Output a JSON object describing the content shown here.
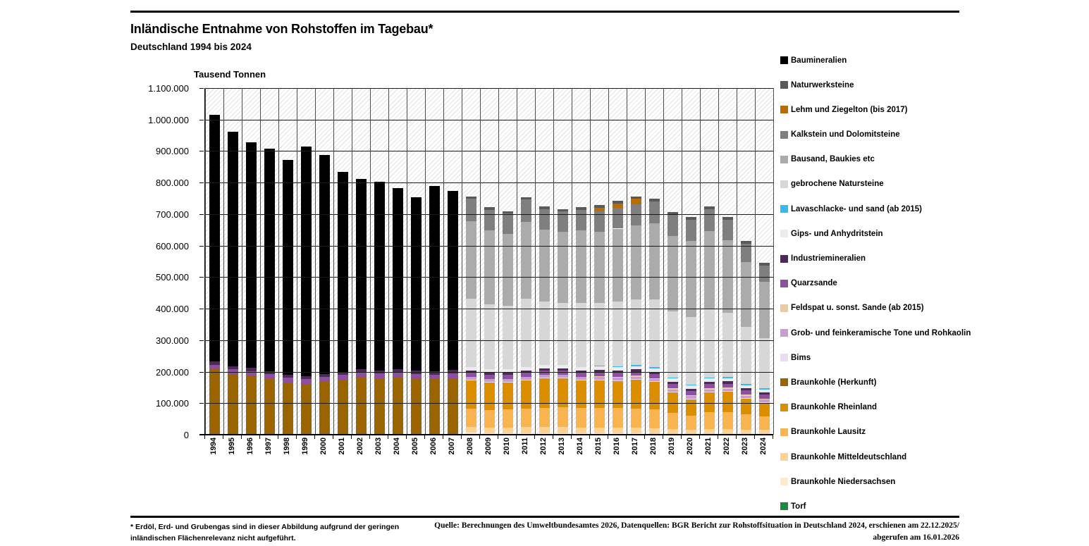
{
  "header": {
    "title": "Inländische Entnahme von Rohstoffen im Tagebau*",
    "subtitle": "Deutschland 1994 bis 2024"
  },
  "axis": {
    "y_title": "Tausend Tonnen"
  },
  "footnotes": {
    "left_line1": "* Erdöl, Erd- und Grubengas sind in dieser Abbildung aufgrund der geringen",
    "left_line2": "inländischen Flächenrelevanz nicht aufgeführt.",
    "source_line1": "Quelle: Berechnungen des Umweltbundesamtes 2026, Datenquellen: BGR Bericht zur Rohstoffsituation in Deutschland 2024, erschienen am 22.12.2025/",
    "source_line2": "abgerufen am 16.01.2026"
  },
  "chart_data": {
    "type": "bar",
    "stacked": true,
    "title": "Inländische Entnahme von Rohstoffen im Tagebau*",
    "subtitle": "Deutschland 1994 bis 2024",
    "ylabel": "Tausend Tonnen",
    "xlabel": "",
    "ylim": [
      0,
      1100000
    ],
    "ytick_step": 100000,
    "grid": true,
    "legend_position": "right",
    "legend_order": "reverse_of_stacking",
    "years": [
      1994,
      1995,
      1996,
      1997,
      1998,
      1999,
      2000,
      2001,
      2002,
      2003,
      2004,
      2005,
      2006,
      2007,
      2008,
      2009,
      2010,
      2011,
      2012,
      2013,
      2014,
      2015,
      2016,
      2017,
      2018,
      2019,
      2020,
      2021,
      2022,
      2023,
      2024
    ],
    "series": [
      {
        "name": "Torf",
        "color": "#188A42",
        "values": [
          0,
          0,
          0,
          0,
          0,
          0,
          0,
          0,
          0,
          0,
          0,
          0,
          0,
          0,
          3000,
          3000,
          3000,
          3000,
          3000,
          3000,
          3000,
          3000,
          3000,
          3000,
          3000,
          3000,
          3000,
          3000,
          3000,
          3000,
          3000
        ]
      },
      {
        "name": "Braunkohle Niedersachsen",
        "color": "#FDEBCE",
        "values": [
          0,
          0,
          0,
          0,
          0,
          0,
          0,
          0,
          0,
          0,
          0,
          0,
          0,
          0,
          3000,
          2000,
          2000,
          2000,
          2000,
          2000,
          2000,
          2000,
          1000,
          1000,
          0,
          0,
          0,
          0,
          0,
          0,
          0
        ]
      },
      {
        "name": "Braunkohle Mitteldeutschland",
        "color": "#FCD392",
        "values": [
          0,
          0,
          0,
          0,
          0,
          0,
          0,
          0,
          0,
          0,
          0,
          0,
          0,
          0,
          19000,
          18000,
          18000,
          19000,
          19000,
          19000,
          18000,
          18000,
          18000,
          18000,
          18000,
          14000,
          12000,
          14000,
          15000,
          13000,
          12000
        ]
      },
      {
        "name": "Braunkohle Lausitz",
        "color": "#F9B34F",
        "values": [
          0,
          0,
          0,
          0,
          0,
          0,
          0,
          0,
          0,
          0,
          0,
          0,
          0,
          0,
          58000,
          56000,
          57000,
          59000,
          62000,
          63000,
          61000,
          62000,
          62000,
          61000,
          60000,
          52000,
          45000,
          55000,
          54000,
          49000,
          44000
        ]
      },
      {
        "name": "Braunkohle Rheinland",
        "color": "#DB8E00",
        "values": [
          0,
          0,
          0,
          0,
          0,
          0,
          0,
          0,
          0,
          0,
          0,
          0,
          0,
          0,
          90000,
          87000,
          86000,
          90000,
          94000,
          93000,
          89000,
          88000,
          87000,
          91000,
          86000,
          65000,
          52000,
          62000,
          64000,
          49000,
          42000
        ]
      },
      {
        "name": "Braunkohle (Herkunft)",
        "color": "#9A6400",
        "values": [
          207000,
          193000,
          187000,
          177000,
          166000,
          161000,
          168000,
          175000,
          182000,
          179000,
          182000,
          178000,
          176000,
          180000,
          0,
          0,
          0,
          0,
          0,
          0,
          0,
          0,
          0,
          0,
          0,
          0,
          0,
          0,
          0,
          0,
          0
        ]
      },
      {
        "name": "Bims",
        "color": "#EADDF2",
        "values": [
          0,
          0,
          0,
          0,
          0,
          0,
          0,
          0,
          0,
          0,
          0,
          0,
          0,
          0,
          2000,
          2000,
          2000,
          2000,
          2000,
          2000,
          2000,
          2000,
          2000,
          2000,
          2000,
          2000,
          2000,
          2000,
          2000,
          2000,
          2000
        ]
      },
      {
        "name": "Grob- und feinkeramische Tone und Rohkaolin",
        "color": "#C99BD3",
        "values": [
          0,
          0,
          0,
          0,
          0,
          0,
          0,
          0,
          0,
          0,
          0,
          0,
          0,
          0,
          8000,
          8000,
          8000,
          8000,
          8000,
          8000,
          8000,
          8000,
          8000,
          8000,
          8000,
          8000,
          8000,
          8000,
          8000,
          8000,
          8000
        ]
      },
      {
        "name": "Feldspat u. sonst. Sande (ab 2015)",
        "color": "#EACBA5",
        "values": [
          0,
          0,
          0,
          0,
          0,
          0,
          0,
          0,
          0,
          0,
          0,
          0,
          0,
          0,
          0,
          0,
          0,
          0,
          0,
          0,
          0,
          3000,
          3000,
          3000,
          3000,
          3000,
          3000,
          3000,
          3000,
          3000,
          3000
        ]
      },
      {
        "name": "Quarzsande",
        "color": "#8E4FA0",
        "values": [
          15000,
          15000,
          15000,
          15000,
          15000,
          15000,
          15000,
          15000,
          15000,
          15000,
          15000,
          15000,
          15000,
          15000,
          13000,
          13000,
          13000,
          13000,
          13000,
          13000,
          13000,
          13000,
          13000,
          13000,
          13000,
          13000,
          13000,
          13000,
          13000,
          13000,
          13000
        ]
      },
      {
        "name": "Industriemineralien",
        "color": "#4C2A57",
        "values": [
          10000,
          10000,
          10000,
          10000,
          10000,
          10000,
          10000,
          10000,
          10000,
          10000,
          10000,
          10000,
          10000,
          10000,
          7000,
          7000,
          7000,
          7000,
          7000,
          7000,
          7000,
          7000,
          7000,
          7000,
          7000,
          7000,
          7000,
          7000,
          7000,
          7000,
          7000
        ]
      },
      {
        "name": "Gips- und Anhydritstein",
        "color": "#EBEBEB",
        "values": [
          0,
          0,
          0,
          0,
          0,
          0,
          0,
          0,
          0,
          0,
          0,
          0,
          0,
          0,
          11000,
          11000,
          11000,
          11000,
          11000,
          11000,
          11000,
          11000,
          11000,
          11000,
          11000,
          11000,
          11000,
          11000,
          11000,
          10000,
          10000
        ]
      },
      {
        "name": "Lavaschlacke- und sand (ab 2015)",
        "color": "#33BCF2",
        "values": [
          0,
          0,
          0,
          0,
          0,
          0,
          0,
          0,
          0,
          0,
          0,
          0,
          0,
          0,
          0,
          0,
          0,
          0,
          0,
          0,
          0,
          3000,
          3000,
          3000,
          3000,
          3000,
          3000,
          3000,
          3000,
          3000,
          3000
        ]
      },
      {
        "name": "gebrochene Natursteine",
        "color": "#D7D7D7",
        "values": [
          0,
          0,
          0,
          0,
          0,
          0,
          0,
          0,
          0,
          0,
          0,
          0,
          0,
          0,
          218000,
          207000,
          202000,
          217000,
          202000,
          198000,
          204000,
          199000,
          205000,
          209000,
          215000,
          211000,
          214000,
          219000,
          204000,
          182000,
          160000
        ]
      },
      {
        "name": "Bausand, Baukies etc",
        "color": "#ABABAB",
        "values": [
          0,
          0,
          0,
          0,
          0,
          0,
          0,
          0,
          0,
          0,
          0,
          0,
          0,
          0,
          246000,
          234000,
          228000,
          245000,
          227000,
          224000,
          230000,
          225000,
          231000,
          235000,
          242000,
          238000,
          241000,
          246000,
          230000,
          205000,
          179000
        ]
      },
      {
        "name": "Kalkstein und Dolomitsteine",
        "color": "#7F7F7F",
        "values": [
          0,
          0,
          0,
          0,
          0,
          0,
          0,
          0,
          0,
          0,
          0,
          0,
          0,
          0,
          70000,
          66000,
          64000,
          70000,
          66000,
          65000,
          66000,
          65000,
          66000,
          67000,
          70000,
          68000,
          69000,
          70000,
          66000,
          59000,
          51000
        ]
      },
      {
        "name": "Lehm und Ziegelton (bis 2017)",
        "color": "#BA6C00",
        "values": [
          0,
          0,
          0,
          0,
          0,
          0,
          0,
          0,
          0,
          0,
          0,
          0,
          0,
          0,
          0,
          0,
          0,
          0,
          0,
          0,
          0,
          12000,
          14000,
          16000,
          0,
          0,
          0,
          0,
          0,
          0,
          0
        ]
      },
      {
        "name": "Naturwerksteine",
        "color": "#595959",
        "values": [
          0,
          0,
          0,
          0,
          0,
          0,
          0,
          0,
          0,
          0,
          0,
          0,
          0,
          0,
          8000,
          8000,
          8000,
          8000,
          8000,
          8000,
          8000,
          8000,
          8000,
          8000,
          8000,
          8000,
          8000,
          8000,
          8000,
          8000,
          8000
        ]
      },
      {
        "name": "Baumineralien",
        "color": "#000000",
        "values": [
          783000,
          743000,
          715000,
          705000,
          680000,
          728000,
          694000,
          633000,
          605000,
          599000,
          576000,
          550000,
          589000,
          569000,
          0,
          0,
          0,
          0,
          0,
          0,
          0,
          0,
          0,
          0,
          0,
          0,
          0,
          0,
          0,
          0,
          0
        ]
      }
    ]
  }
}
